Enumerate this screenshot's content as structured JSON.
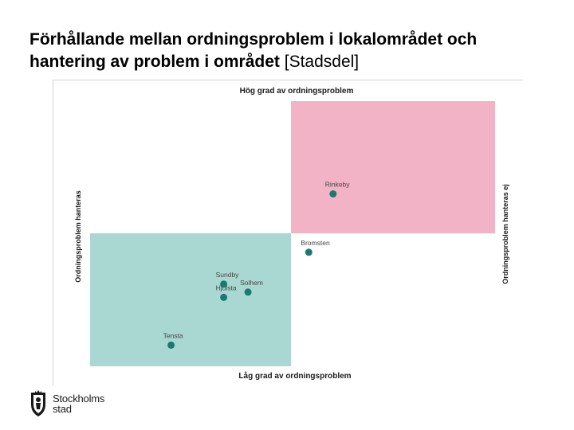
{
  "slide": {
    "title_main": "Förhållande mellan ordningsproblem i lokalområdet och hantering av problem i området",
    "title_bracket": "[Stadsdel]"
  },
  "logo": {
    "line1": "Stockholms",
    "line2": "stad"
  },
  "chart_data": {
    "type": "scatter",
    "title": "Hög grad av ordningsproblem",
    "xlabel": "Låg grad av ordningsproblem",
    "ylabel_left": "Ordningsproblem hanteras",
    "ylabel_right": "Ordningsproblem hanteras ej",
    "quadrants": [
      {
        "name": "hog-ej-hanterade",
        "color": "#f2b3c6"
      },
      {
        "name": "lag-hanterade",
        "color": "#a9d8d3"
      }
    ],
    "point_color": "#1a7a6b",
    "xlim": [
      0,
      10
    ],
    "ylim": [
      0,
      10
    ],
    "points": [
      {
        "label": "Rinkeby",
        "x": 6.0,
        "y": 6.5
      },
      {
        "label": "Bromsten",
        "x": 5.4,
        "y": 4.3
      },
      {
        "label": "Sundby",
        "x": 3.3,
        "y": 3.1
      },
      {
        "label": "Solhem",
        "x": 3.9,
        "y": 2.8
      },
      {
        "label": "Hjulsta",
        "x": 3.3,
        "y": 2.6
      },
      {
        "label": "Tensta",
        "x": 2.0,
        "y": 0.8
      }
    ]
  }
}
